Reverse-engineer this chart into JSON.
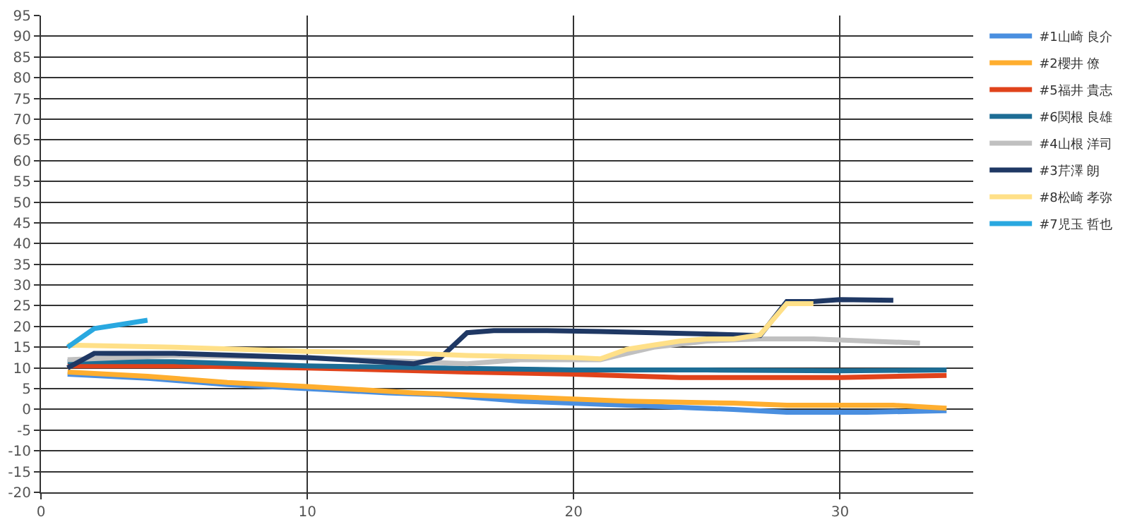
{
  "chart_data": {
    "type": "line",
    "xlim": [
      0,
      35
    ],
    "xticks": [
      0,
      10,
      20,
      30
    ],
    "ylim": [
      -20,
      95
    ],
    "yticks": [
      -20,
      -15,
      -10,
      -5,
      0,
      5,
      10,
      15,
      20,
      25,
      30,
      35,
      40,
      45,
      50,
      55,
      60,
      65,
      70,
      75,
      80,
      85,
      90,
      95
    ],
    "grid": true,
    "legend": "top right",
    "marker": "none",
    "line_style": "solid",
    "series": [
      {
        "name": "#1山崎 良介",
        "color": "#4a8fe0",
        "x": [
          1,
          4,
          7,
          10,
          13,
          15,
          18,
          22,
          26,
          28,
          31,
          34
        ],
        "values": [
          8.5,
          7.5,
          6,
          5,
          4,
          3.5,
          2,
          1,
          0,
          -0.7,
          -0.7,
          -0.3
        ]
      },
      {
        "name": "#2櫻井 僚",
        "color": "#ffae2f",
        "x": [
          1,
          4,
          7,
          10,
          14,
          18,
          22,
          26,
          28,
          32,
          34
        ],
        "values": [
          9,
          8,
          6.5,
          5.5,
          4,
          3,
          2,
          1.5,
          1,
          1,
          0.3
        ]
      },
      {
        "name": "#5福井 貴志",
        "color": "#e0431b",
        "x": [
          1,
          5,
          10,
          16,
          20,
          24,
          30,
          34
        ],
        "values": [
          10.5,
          10.5,
          10,
          9,
          8.5,
          7.7,
          7.7,
          8.2
        ]
      },
      {
        "name": "#6関根 良雄",
        "color": "#1d6d95",
        "x": [
          1,
          5,
          10,
          15,
          20,
          25,
          30,
          34
        ],
        "values": [
          11.5,
          11.5,
          10.5,
          10,
          9.5,
          9.5,
          9.3,
          9.5
        ]
      },
      {
        "name": "#4山根 洋司",
        "color": "#c0c0c0",
        "x": [
          1,
          5,
          10,
          14,
          16,
          18,
          21,
          23,
          25,
          27,
          29,
          31,
          33
        ],
        "values": [
          12,
          13,
          12.5,
          11.5,
          11,
          12,
          12,
          15,
          16.5,
          17,
          17,
          16.5,
          16
        ]
      },
      {
        "name": "#3芹澤 朗",
        "color": "#1f3864",
        "x": [
          1,
          2,
          5,
          10,
          14,
          15,
          16,
          17,
          19,
          21,
          25,
          27,
          28,
          29,
          30,
          32
        ],
        "values": [
          10,
          13.5,
          13.5,
          12.5,
          11,
          12.5,
          18.5,
          19,
          19,
          18.8,
          18.2,
          17.8,
          26,
          26,
          26.5,
          26.3
        ]
      },
      {
        "name": "#8松崎 孝弥",
        "color": "#ffe088",
        "x": [
          1,
          5,
          10,
          14,
          16,
          20,
          21,
          22,
          23,
          24,
          25,
          26,
          27,
          28,
          29
        ],
        "values": [
          15.5,
          15,
          14,
          13.5,
          13,
          12.5,
          12.2,
          14.5,
          15.5,
          16.5,
          17,
          17,
          18,
          25.5,
          25.5
        ]
      },
      {
        "name": "#7児玉 哲也",
        "color": "#29a8e0",
        "x": [
          1,
          2,
          3,
          4
        ],
        "values": [
          15,
          19.5,
          20.5,
          21.5
        ]
      }
    ]
  }
}
